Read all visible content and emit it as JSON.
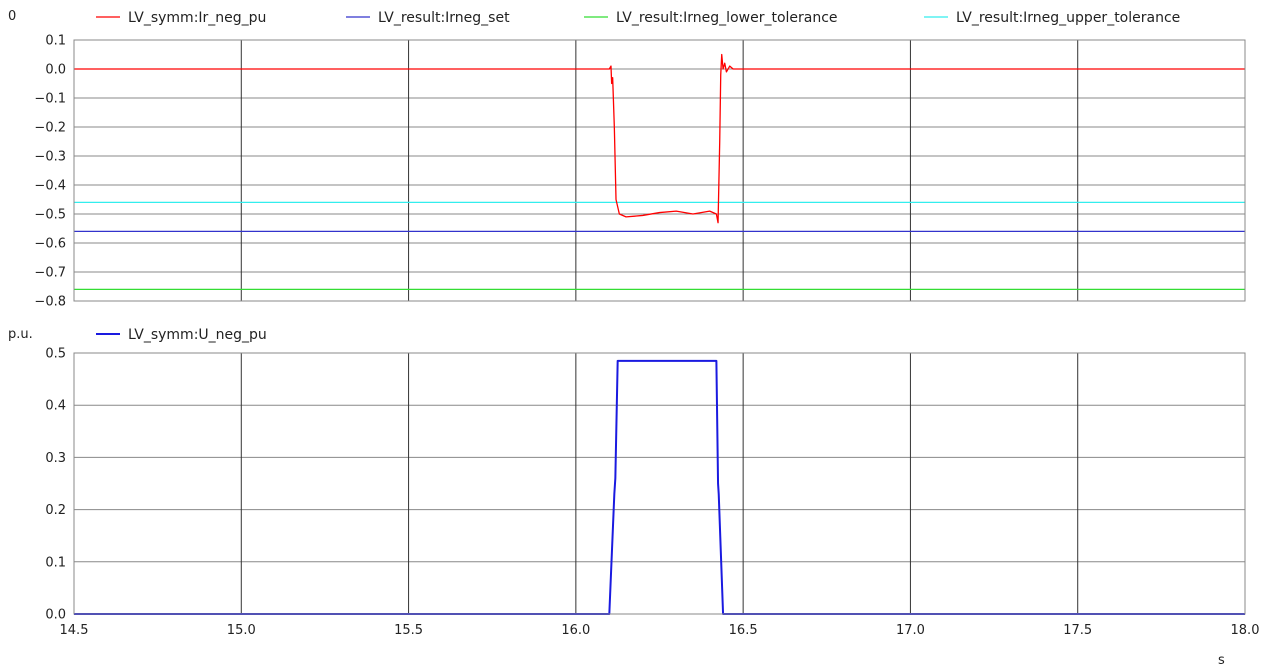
{
  "chart_data": [
    {
      "type": "line",
      "unit_label": "0",
      "xlim": [
        14.5,
        18.0
      ],
      "ylim": [
        -0.8,
        0.1
      ],
      "yticks": [
        0.1,
        0.0,
        -0.1,
        -0.2,
        -0.3,
        -0.4,
        -0.5,
        -0.6,
        -0.7,
        -0.8
      ],
      "ytick_labels": [
        "0.1",
        "0.0",
        "−0.1",
        "−0.2",
        "−0.3",
        "−0.4",
        "−0.5",
        "−0.6",
        "−0.7",
        "−0.8"
      ],
      "grid": true,
      "legend_position": "top",
      "series": [
        {
          "name": "LV_symm:Ir_neg_pu",
          "color": "#ff0000",
          "x": [
            14.5,
            15.0,
            15.5,
            16.0,
            16.1,
            16.105,
            16.107,
            16.11,
            16.115,
            16.12,
            16.13,
            16.15,
            16.2,
            16.25,
            16.3,
            16.35,
            16.4,
            16.42,
            16.425,
            16.43,
            16.433,
            16.436,
            16.44,
            16.445,
            16.45,
            16.46,
            16.47,
            16.5,
            17.0,
            17.5,
            18.0
          ],
          "y": [
            0.0,
            0.0,
            0.0,
            0.0,
            0.0,
            0.01,
            -0.05,
            -0.03,
            -0.2,
            -0.45,
            -0.5,
            -0.51,
            -0.505,
            -0.495,
            -0.49,
            -0.5,
            -0.49,
            -0.5,
            -0.53,
            -0.25,
            -0.02,
            0.05,
            0.0,
            0.02,
            -0.01,
            0.01,
            0.0,
            0.0,
            0.0,
            0.0,
            0.0
          ]
        },
        {
          "name": "LV_result:Irneg_set",
          "color": "#3333cc",
          "x": [
            14.5,
            18.0
          ],
          "y": [
            -0.56,
            -0.56
          ]
        },
        {
          "name": "LV_result:Irneg_lower_tolerance",
          "color": "#33dd33",
          "x": [
            14.5,
            18.0
          ],
          "y": [
            -0.76,
            -0.76
          ]
        },
        {
          "name": "LV_result:Irneg_upper_tolerance",
          "color": "#33eeee",
          "x": [
            14.5,
            18.0
          ],
          "y": [
            -0.46,
            -0.46
          ]
        }
      ]
    },
    {
      "type": "line",
      "unit_label": "p.u.",
      "xlabel": "s",
      "xlim": [
        14.5,
        18.0
      ],
      "ylim": [
        0.0,
        0.5
      ],
      "xticks": [
        14.5,
        15.0,
        15.5,
        16.0,
        16.5,
        17.0,
        17.5,
        18.0
      ],
      "xtick_labels": [
        "14.5",
        "15.0",
        "15.5",
        "16.0",
        "16.5",
        "17.0",
        "17.5",
        "18.0"
      ],
      "yticks": [
        0.5,
        0.4,
        0.3,
        0.2,
        0.1,
        0.0
      ],
      "ytick_labels": [
        "0.5",
        "0.4",
        "0.3",
        "0.2",
        "0.1",
        "0.0"
      ],
      "grid": true,
      "legend_position": "top-left",
      "series": [
        {
          "name": "LV_symm:U_neg_pu",
          "color": "#1a1ae0",
          "x": [
            14.5,
            16.1,
            16.115,
            16.118,
            16.125,
            16.2,
            16.3,
            16.42,
            16.425,
            16.427,
            16.44,
            16.45,
            18.0
          ],
          "y": [
            0.0,
            0.0,
            0.23,
            0.26,
            0.485,
            0.485,
            0.485,
            0.485,
            0.25,
            0.23,
            0.0,
            0.0,
            0.0
          ]
        }
      ]
    }
  ]
}
